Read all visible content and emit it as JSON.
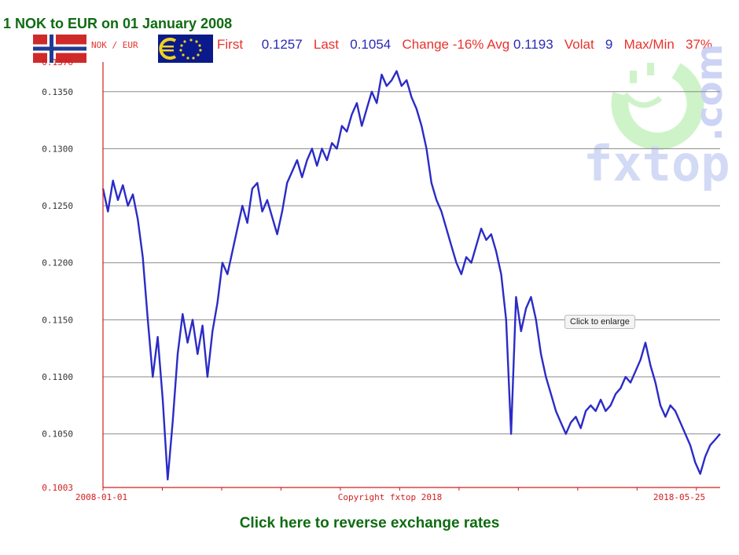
{
  "page": {
    "title": "1 NOK to EUR on 01 January 2008",
    "pair_label": "NOK / EUR",
    "reverse_link": "Click here to reverse exchange rates",
    "tooltip": "Click to enlarge"
  },
  "stats": {
    "first_label": "First",
    "first_value": "0.1257",
    "last_label": "Last",
    "last_value": "0.1054",
    "change_label": "Change",
    "change_value": "-16%",
    "avg_label": "Avg",
    "avg_value": "0.1193",
    "volat_label": "Volat",
    "volat_value": "9",
    "maxmin_label": "Max/Min",
    "maxmin_value": "37%"
  },
  "watermark": {
    "brand": "fxtop",
    "com": ".com"
  },
  "icons": {
    "norway_flag": "norway-flag-icon",
    "eu_flag": "euro-flag-icon",
    "smiley": "smiley-logo-icon"
  },
  "colors": {
    "line": "#2b2bc8",
    "axis": "#d21e1e",
    "grid": "#8a8a8a",
    "title_green": "#0f6b12",
    "label_red": "#e8322d",
    "value_blue": "#2a2ab8"
  },
  "chart_data": {
    "type": "line",
    "title": "1 NOK to EUR on 01 January 2008",
    "xlabel": "",
    "ylabel": "",
    "ylim": [
      0.1003,
      0.1376
    ],
    "y_ticks": [
      "0.1003",
      "0.1050",
      "0.1100",
      "0.1150",
      "0.1200",
      "0.1250",
      "0.1300",
      "0.1350",
      "0.1376"
    ],
    "x_ticks": [
      "2008-01-01",
      "Copyright fxtop 2018",
      "2018-05-25"
    ],
    "grid": true,
    "series": [
      {
        "values": [
          0.1265,
          0.1245,
          0.1272,
          0.1255,
          0.1268,
          0.125,
          0.126,
          0.1238,
          0.1205,
          0.115,
          0.11,
          0.1135,
          0.108,
          0.101,
          0.106,
          0.112,
          0.1155,
          0.113,
          0.115,
          0.112,
          0.1145,
          0.11,
          0.114,
          0.1165,
          0.12,
          0.119,
          0.121,
          0.123,
          0.125,
          0.1235,
          0.1265,
          0.127,
          0.1245,
          0.1255,
          0.124,
          0.1225,
          0.1245,
          0.127,
          0.128,
          0.129,
          0.1275,
          0.129,
          0.13,
          0.1285,
          0.13,
          0.129,
          0.1305,
          0.13,
          0.132,
          0.1315,
          0.133,
          0.134,
          0.132,
          0.1335,
          0.135,
          0.134,
          0.1365,
          0.1355,
          0.136,
          0.1368,
          0.1355,
          0.136,
          0.1345,
          0.1335,
          0.132,
          0.13,
          0.127,
          0.1255,
          0.1245,
          0.123,
          0.1215,
          0.12,
          0.119,
          0.1205,
          0.12,
          0.1215,
          0.123,
          0.122,
          0.1225,
          0.121,
          0.119,
          0.115,
          0.105,
          0.117,
          0.114,
          0.116,
          0.117,
          0.115,
          0.112,
          0.11,
          0.1085,
          0.107,
          0.106,
          0.105,
          0.106,
          0.1065,
          0.1055,
          0.107,
          0.1075,
          0.107,
          0.108,
          0.107,
          0.1075,
          0.1085,
          0.109,
          0.11,
          0.1095,
          0.1105,
          0.1115,
          0.113,
          0.111,
          0.1095,
          0.1075,
          0.1065,
          0.1075,
          0.107,
          0.106,
          0.105,
          0.104,
          0.1025,
          0.1015,
          0.103,
          0.104,
          0.1045,
          0.105
        ]
      }
    ]
  }
}
